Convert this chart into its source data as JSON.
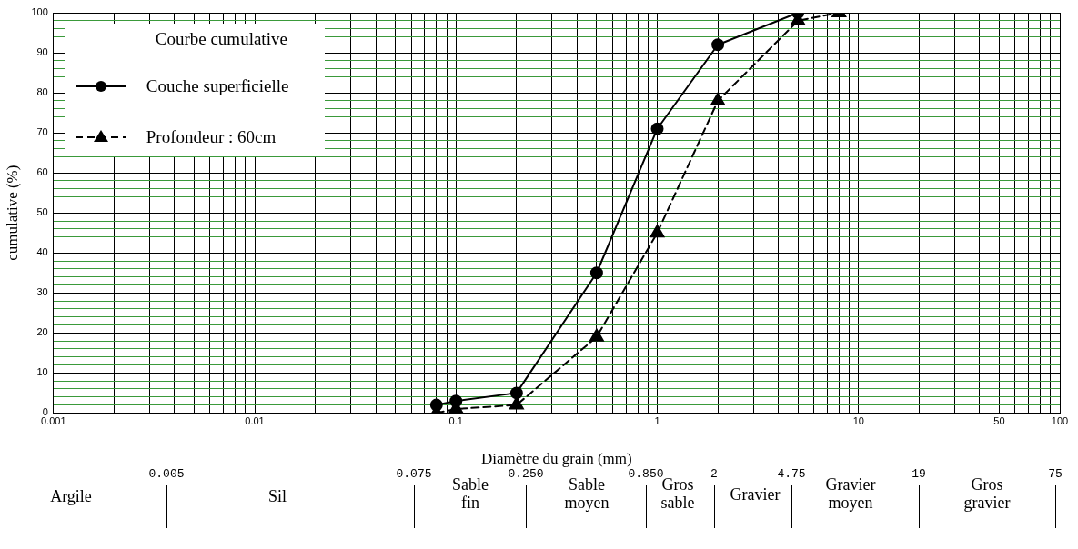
{
  "chart_data": {
    "type": "line",
    "legend_title": "Courbe cumulative",
    "xlabel": "Diamètre du grain (mm)",
    "ylabel": "cumulative (%)",
    "series": [
      {
        "name": "Couche superficielle",
        "color": "#000000",
        "marker": "circle",
        "line_style": "solid",
        "x": [
          0.08,
          0.1,
          0.2,
          0.5,
          1,
          2,
          5
        ],
        "values": [
          2,
          3,
          5,
          35,
          71,
          92,
          100
        ]
      },
      {
        "name": "Profondeur : 60cm",
        "color": "#000000",
        "marker": "triangle",
        "line_style": "dashed",
        "x": [
          0.08,
          0.1,
          0.2,
          0.5,
          1,
          2,
          5,
          8
        ],
        "values": [
          0,
          1,
          2,
          19,
          45,
          78,
          98,
          100
        ]
      }
    ],
    "log": "x",
    "xlim": [
      0.001,
      100
    ],
    "ylim": [
      0,
      100
    ],
    "xticks": [
      0.001,
      {
        "value": 0.002,
        "label": null
      },
      {
        "value": 0.003,
        "label": null
      },
      {
        "value": 0.004,
        "label": null
      },
      {
        "value": 0.005,
        "label": null
      },
      {
        "value": 0.006,
        "label": null
      },
      {
        "value": 0.007,
        "label": null
      },
      {
        "value": 0.008,
        "label": null
      },
      {
        "value": 0.009,
        "label": null
      },
      0.01,
      {
        "value": 0.02,
        "label": null
      },
      {
        "value": 0.03,
        "label": null
      },
      {
        "value": 0.04,
        "label": null
      },
      {
        "value": 0.05,
        "label": null
      },
      {
        "value": 0.06,
        "label": null
      },
      {
        "value": 0.07,
        "label": null
      },
      {
        "value": 0.08,
        "label": null
      },
      {
        "value": 0.09,
        "label": null
      },
      0.1,
      {
        "value": 0.2,
        "label": null
      },
      {
        "value": 0.3,
        "label": null
      },
      {
        "value": 0.4,
        "label": null
      },
      {
        "value": 0.5,
        "label": null
      },
      {
        "value": 0.6,
        "label": null
      },
      {
        "value": 0.7,
        "label": null
      },
      {
        "value": 0.8,
        "label": null
      },
      {
        "value": 0.9,
        "label": null
      },
      1,
      {
        "value": 2,
        "label": null
      },
      {
        "value": 3,
        "label": null
      },
      {
        "value": 4,
        "label": null
      },
      {
        "value": 5,
        "label": null
      },
      {
        "value": 6,
        "label": null
      },
      {
        "value": 7,
        "label": null
      },
      {
        "value": 8,
        "label": null
      },
      {
        "value": 9,
        "label": null
      },
      10,
      {
        "value": 20,
        "label": null
      },
      {
        "value": 30,
        "label": null
      },
      {
        "value": 40,
        "label": null
      },
      50,
      {
        "value": 60,
        "label": null
      },
      {
        "value": 70,
        "label": null
      },
      {
        "value": 80,
        "label": null
      },
      {
        "value": 90,
        "label": null
      },
      100
    ],
    "yticks": [
      0,
      {
        "value": 2,
        "label": null
      },
      {
        "value": 4,
        "label": null
      },
      {
        "value": 6,
        "label": null
      },
      {
        "value": 8,
        "label": null
      },
      10,
      {
        "value": 12,
        "label": null
      },
      {
        "value": 14,
        "label": null
      },
      {
        "value": 16,
        "label": null
      },
      {
        "value": 18,
        "label": null
      },
      20,
      {
        "value": 22,
        "label": null
      },
      {
        "value": 24,
        "label": null
      },
      {
        "value": 26,
        "label": null
      },
      {
        "value": 28,
        "label": null
      },
      30,
      {
        "value": 32,
        "label": null
      },
      {
        "value": 34,
        "label": null
      },
      {
        "value": 36,
        "label": null
      },
      {
        "value": 38,
        "label": null
      },
      40,
      {
        "value": 42,
        "label": null
      },
      {
        "value": 44,
        "label": null
      },
      {
        "value": 46,
        "label": null
      },
      {
        "value": 48,
        "label": null
      },
      50,
      {
        "value": 52,
        "label": null
      },
      {
        "value": 54,
        "label": null
      },
      {
        "value": 56,
        "label": null
      },
      {
        "value": 58,
        "label": null
      },
      60,
      {
        "value": 62,
        "label": null
      },
      {
        "value": 64,
        "label": null
      },
      {
        "value": 66,
        "label": null
      },
      {
        "value": 68,
        "label": null
      },
      70,
      {
        "value": 72,
        "label": null
      },
      {
        "value": 74,
        "label": null
      },
      {
        "value": 76,
        "label": null
      },
      {
        "value": 78,
        "label": null
      },
      80,
      {
        "value": 82,
        "label": null
      },
      {
        "value": 84,
        "label": null
      },
      {
        "value": 86,
        "label": null
      },
      {
        "value": 88,
        "label": null
      },
      90,
      {
        "value": 92,
        "label": null
      },
      {
        "value": 94,
        "label": null
      },
      {
        "value": 96,
        "label": null
      },
      {
        "value": 98,
        "label": null
      },
      100
    ],
    "grid": true,
    "legend": "top left",
    "annotations": [
      "Argile",
      "0.005",
      "Sil",
      "0.075",
      "Sable fin",
      "0.250",
      "Sable moyen",
      "0.850",
      "Gros sable",
      "2",
      "Gravier",
      "4.75",
      "Gravier moyen",
      "19",
      "Gros gravier",
      "75"
    ]
  }
}
